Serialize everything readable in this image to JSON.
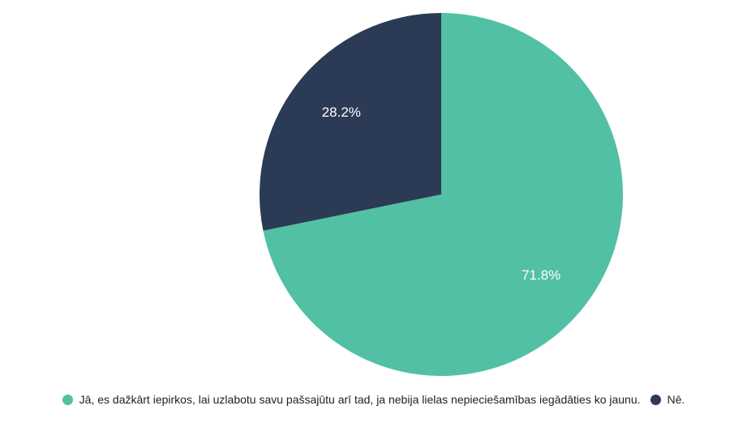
{
  "chart_data": {
    "type": "pie",
    "categories": [
      "Jā, es dažkārt iepirkos, lai uzlabotu savu pašsajūtu arī tad, ja nebija lielas nepieciešamības iegādāties ko jaunu.",
      "Nē."
    ],
    "values": [
      71.8,
      28.2
    ],
    "value_labels": [
      "71.8%",
      "28.2%"
    ],
    "colors": [
      "#52c0a4",
      "#2b3a55"
    ]
  }
}
